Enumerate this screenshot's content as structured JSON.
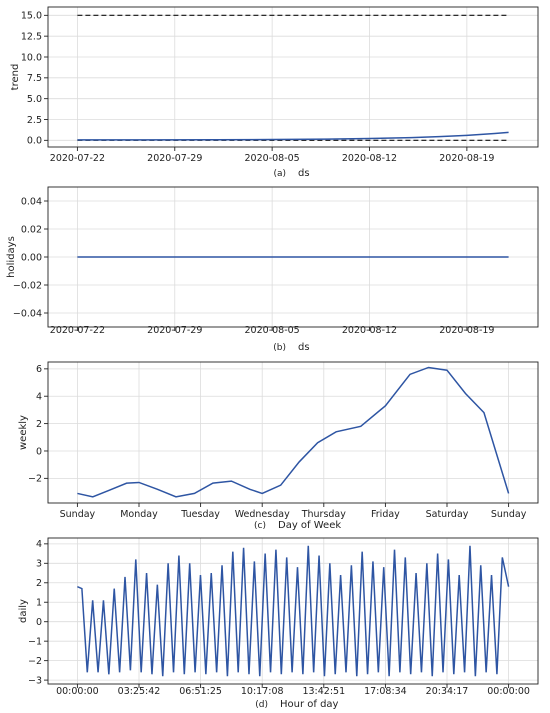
{
  "chart_data": [
    {
      "type": "line",
      "caption": "(a)",
      "xlabel": "ds",
      "ylabel": "trend",
      "x_ticks": [
        "2020-07-22",
        "2020-07-29",
        "2020-08-05",
        "2020-08-12",
        "2020-08-19"
      ],
      "y_ticks": [
        "0.0",
        "2.5",
        "5.0",
        "7.5",
        "10.0",
        "12.5",
        "15.0"
      ],
      "ylim": [
        -0.8,
        16
      ],
      "x_range": [
        0,
        31
      ],
      "series": [
        {
          "x": [
            0,
            5,
            10,
            14,
            18,
            21,
            24,
            26,
            28,
            30,
            31
          ],
          "y": [
            0.05,
            0.05,
            0.07,
            0.1,
            0.15,
            0.22,
            0.32,
            0.45,
            0.6,
            0.82,
            0.95
          ]
        }
      ],
      "dashed_bounds": [
        0,
        15
      ],
      "grid": true
    },
    {
      "type": "line",
      "caption": "(b)",
      "xlabel": "ds",
      "ylabel": "holidays",
      "x_ticks": [
        "2020-07-22",
        "2020-07-29",
        "2020-08-05",
        "2020-08-12",
        "2020-08-19"
      ],
      "y_ticks": [
        "0.04",
        "0.02",
        "0.00",
        "−0.02",
        "−0.04"
      ],
      "ylim": [
        -0.05,
        0.05
      ],
      "x_range": [
        0,
        31
      ],
      "series": [
        {
          "x": [
            0,
            31
          ],
          "y": [
            0,
            0
          ]
        }
      ],
      "grid": true
    },
    {
      "type": "line",
      "caption": "(c)",
      "xlabel": "Day of Week",
      "ylabel": "weekly",
      "x_ticks": [
        "Sunday",
        "Monday",
        "Tuesday",
        "Wednesday",
        "Thursday",
        "Friday",
        "Saturday",
        "Sunday"
      ],
      "y_ticks": [
        "6",
        "4",
        "2",
        "0",
        "−2"
      ],
      "ylim": [
        -3.8,
        6.5
      ],
      "x_range": [
        0,
        7
      ],
      "series": [
        {
          "x": [
            0,
            0.25,
            0.5,
            0.8,
            1.0,
            1.3,
            1.6,
            1.9,
            2.2,
            2.5,
            2.8,
            3.0,
            3.3,
            3.6,
            3.9,
            4.2,
            4.6,
            5.0,
            5.4,
            5.7,
            6.0,
            6.3,
            6.6,
            7.0
          ],
          "y": [
            -3.1,
            -3.35,
            -2.9,
            -2.35,
            -2.3,
            -2.8,
            -3.35,
            -3.1,
            -2.35,
            -2.2,
            -2.8,
            -3.1,
            -2.5,
            -0.8,
            0.6,
            1.4,
            1.8,
            3.3,
            5.6,
            6.1,
            5.9,
            4.2,
            2.8,
            -3.1
          ]
        }
      ],
      "grid": true
    },
    {
      "type": "line",
      "caption": "(d)",
      "xlabel": "Hour of day",
      "ylabel": "daily",
      "x_ticks": [
        "00:00:00",
        "03:25:42",
        "06:51:25",
        "10:17:08",
        "13:42:51",
        "17:08:34",
        "20:34:17",
        "00:00:00"
      ],
      "y_ticks": [
        "4",
        "3",
        "2",
        "1",
        "0",
        "−1",
        "−2",
        "−3"
      ],
      "ylim": [
        -3.2,
        4.3
      ],
      "x_range": [
        0,
        24
      ],
      "series": [
        {
          "x": [
            0,
            0.25,
            0.55,
            0.85,
            1.15,
            1.45,
            1.75,
            2.05,
            2.35,
            2.65,
            2.95,
            3.25,
            3.55,
            3.85,
            4.15,
            4.45,
            4.75,
            5.05,
            5.35,
            5.65,
            5.95,
            6.25,
            6.55,
            6.85,
            7.15,
            7.45,
            7.75,
            8.05,
            8.35,
            8.65,
            8.95,
            9.25,
            9.55,
            9.85,
            10.15,
            10.45,
            10.75,
            11.05,
            11.35,
            11.65,
            11.95,
            12.25,
            12.55,
            12.85,
            13.15,
            13.45,
            13.75,
            14.05,
            14.35,
            14.65,
            14.95,
            15.25,
            15.55,
            15.85,
            16.15,
            16.45,
            16.75,
            17.05,
            17.35,
            17.65,
            17.95,
            18.25,
            18.55,
            18.85,
            19.15,
            19.45,
            19.75,
            20.05,
            20.35,
            20.65,
            20.95,
            21.25,
            21.55,
            21.85,
            22.15,
            22.45,
            22.75,
            23.05,
            23.35,
            23.65,
            24.0
          ],
          "y": [
            1.8,
            1.7,
            -2.6,
            1.1,
            -2.6,
            1.1,
            -2.7,
            1.7,
            -2.6,
            2.3,
            -2.5,
            3.2,
            -2.6,
            2.5,
            -2.7,
            1.9,
            -2.8,
            3.0,
            -2.6,
            3.4,
            -2.7,
            3.0,
            -2.6,
            2.4,
            -2.7,
            2.5,
            -2.6,
            2.9,
            -2.8,
            3.6,
            -2.6,
            3.8,
            -2.7,
            3.1,
            -2.8,
            3.5,
            -2.6,
            3.7,
            -2.7,
            3.3,
            -2.6,
            2.8,
            -2.7,
            3.9,
            -2.6,
            3.4,
            -2.8,
            3.0,
            -2.7,
            2.4,
            -2.6,
            2.9,
            -2.8,
            3.6,
            -2.7,
            3.1,
            -2.6,
            2.8,
            -2.8,
            3.7,
            -2.6,
            3.3,
            -2.7,
            2.5,
            -2.6,
            3.0,
            -2.8,
            3.5,
            -2.6,
            3.2,
            -2.7,
            2.4,
            -2.6,
            3.9,
            -2.8,
            2.9,
            -2.6,
            2.4,
            -2.7,
            3.3,
            1.8
          ]
        }
      ],
      "grid": true
    }
  ]
}
